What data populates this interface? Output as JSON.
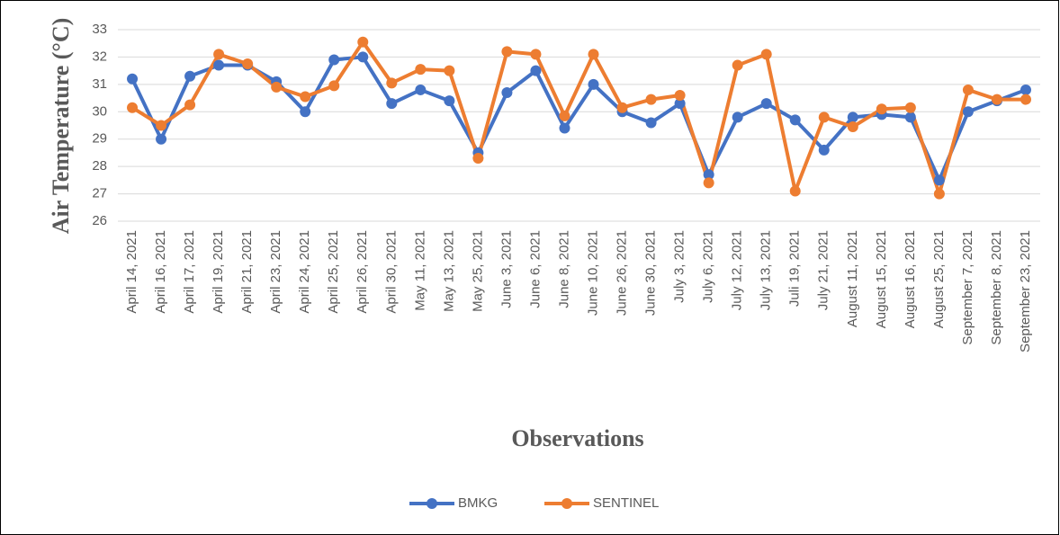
{
  "chart_data": {
    "type": "line",
    "x_label": "Observations",
    "y_label": "Air Temperature (°C)",
    "categories": [
      "April 14, 2021",
      "April 16, 2021",
      "April 17, 2021",
      "April 19, 2021",
      "April 21, 2021",
      "April 23, 2021",
      "April 24, 2021",
      "April 25, 2021",
      "April 26, 2021",
      "April 30, 2021",
      "May 11, 2021",
      "May 13, 2021",
      "May 25, 2021",
      "June 3, 2021",
      "June 6, 2021",
      "June 8, 2021",
      "June 10, 2021",
      "June 26, 2021",
      "June 30, 2021",
      "July 3, 2021",
      "July 6, 2021",
      "July 12, 2021",
      "July 13, 2021",
      "Juli 19, 2021",
      "July 21, 2021",
      "August 11, 2021",
      "August 15, 2021",
      "August 16, 2021",
      "August 25, 2021",
      "September 7, 2021",
      "September 8, 2021",
      "September 23, 2021"
    ],
    "series": [
      {
        "name": "BMKG",
        "color": "#4472c4",
        "values": [
          31.2,
          29.0,
          31.3,
          31.7,
          31.7,
          31.1,
          30.0,
          31.9,
          32.0,
          30.3,
          30.8,
          30.4,
          28.5,
          30.7,
          31.5,
          29.4,
          31.0,
          30.0,
          29.6,
          30.3,
          27.7,
          29.8,
          30.3,
          29.7,
          28.6,
          29.8,
          29.9,
          29.8,
          27.5,
          30.0,
          30.4,
          30.8
        ]
      },
      {
        "name": "SENTINEL",
        "color": "#ed7d31",
        "values": [
          30.15,
          29.5,
          30.25,
          32.1,
          31.75,
          30.9,
          30.55,
          30.95,
          32.55,
          31.05,
          31.55,
          31.5,
          28.3,
          32.2,
          32.1,
          29.85,
          32.1,
          30.15,
          30.45,
          30.6,
          27.4,
          31.7,
          32.1,
          27.1,
          29.8,
          29.45,
          30.1,
          30.15,
          27.0,
          30.8,
          30.45,
          30.45
        ]
      }
    ],
    "ylim": [
      26,
      33
    ],
    "yticks": [
      26,
      27,
      28,
      29,
      30,
      31,
      32,
      33
    ],
    "grid": true,
    "legend": "bottom"
  }
}
